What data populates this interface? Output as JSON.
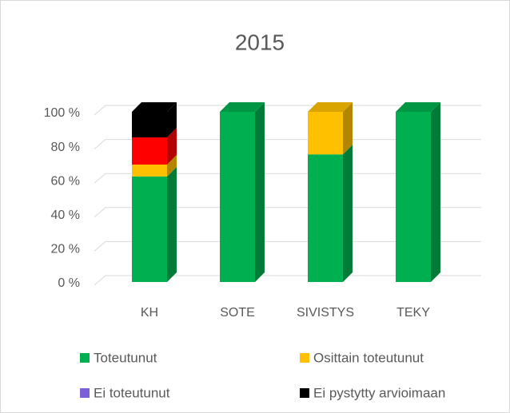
{
  "chart_data": {
    "type": "bar3d_stacked",
    "title": "2015",
    "categories": [
      "KH",
      "SOTE",
      "SIVISTYS",
      "TEKY"
    ],
    "series": [
      {
        "name": "Toteutunut",
        "color": "#00b050",
        "values": [
          62,
          100,
          75,
          100
        ]
      },
      {
        "name": "Osittain toteutunut",
        "color": "#ffc000",
        "values": [
          7,
          0,
          25,
          0
        ]
      },
      {
        "name": "Ei toteutunut",
        "color": "#7b5fd6",
        "point_colors": [
          "#ff0000",
          null,
          null,
          null
        ],
        "values": [
          16,
          0,
          0,
          0
        ]
      },
      {
        "name": "Ei pystytty arvioimaan",
        "color": "#000000",
        "values": [
          15,
          0,
          0,
          0
        ]
      }
    ],
    "ylim": [
      0,
      100
    ],
    "yticks": [
      {
        "value": 0,
        "label": "0 %"
      },
      {
        "value": 20,
        "label": "20 %"
      },
      {
        "value": 40,
        "label": "40 %"
      },
      {
        "value": 60,
        "label": "60 %"
      },
      {
        "value": 80,
        "label": "80 %"
      },
      {
        "value": 100,
        "label": "100 %"
      }
    ],
    "grid": true,
    "legend": "bottom"
  }
}
